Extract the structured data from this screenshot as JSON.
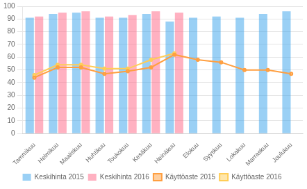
{
  "chart_data": {
    "type": "bar",
    "categories": [
      "Tammikuu",
      "Helmikuu",
      "Maaliskuu",
      "Huhtikuu",
      "Toukokuu",
      "Kesäkuu",
      "Heinäkuu",
      "Elokuu",
      "Syyskuu",
      "Lokakuu",
      "Marraskuu",
      "Joulukuu"
    ],
    "series": [
      {
        "name": "Keskihinta 2015",
        "type": "bar",
        "values": [
          91,
          94,
          95,
          91,
          91,
          94,
          88,
          91,
          92,
          91,
          94,
          96
        ]
      },
      {
        "name": "Keskihinta 2016",
        "type": "bar",
        "values": [
          92,
          95,
          96,
          92,
          93,
          96,
          95,
          null,
          null,
          null,
          null,
          null
        ]
      },
      {
        "name": "Käyttöaste 2015",
        "type": "line",
        "values": [
          44,
          52,
          52,
          47,
          49,
          52,
          62,
          58,
          56,
          50,
          50,
          47
        ]
      },
      {
        "name": "Käyttöaste 2016",
        "type": "line",
        "values": [
          46,
          54,
          54,
          51,
          51,
          58,
          63,
          null,
          null,
          null,
          null,
          null
        ]
      }
    ],
    "ylim": [
      0,
      100
    ],
    "yticks": [
      0,
      10,
      20,
      30,
      40,
      50,
      60,
      70,
      80,
      90,
      100
    ],
    "grid": true,
    "legend": "bottom"
  }
}
